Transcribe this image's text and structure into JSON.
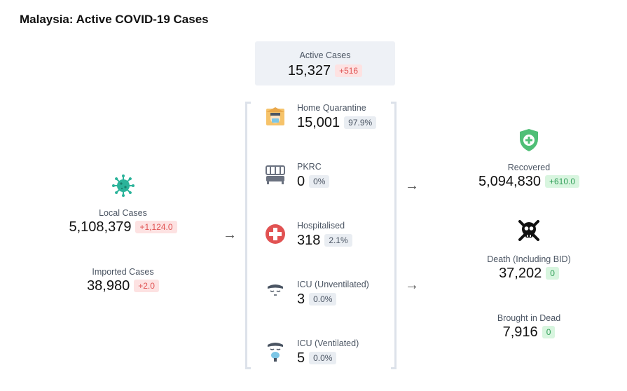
{
  "title": "Malaysia: Active COVID-19 Cases",
  "active": {
    "label": "Active Cases",
    "value": "15,327",
    "change": "+516"
  },
  "left": {
    "local": {
      "label": "Local Cases",
      "value": "5,108,379",
      "change": "+1,124.0"
    },
    "imported": {
      "label": "Imported Cases",
      "value": "38,980",
      "change": "+2.0"
    }
  },
  "middle": [
    {
      "label": "Home Quarantine",
      "value": "15,001",
      "pct": "97.9%",
      "icon": "home-quarantine-icon"
    },
    {
      "label": "PKRC",
      "value": "0",
      "pct": "0%",
      "icon": "bed-icon"
    },
    {
      "label": "Hospitalised",
      "value": "318",
      "pct": "2.1%",
      "icon": "hospital-cross-icon"
    },
    {
      "label": "ICU (Unventilated)",
      "value": "3",
      "pct": "0.0%",
      "icon": "icu-patient-icon"
    },
    {
      "label": "ICU (Ventilated)",
      "value": "5",
      "pct": "0.0%",
      "icon": "ventilator-icon"
    }
  ],
  "right": {
    "recovered": {
      "label": "Recovered",
      "value": "5,094,830",
      "change": "+610.0"
    },
    "death": {
      "label": "Death (Including BID)",
      "value": "37,202",
      "change": "0"
    },
    "bid": {
      "label": "Brought in Dead",
      "value": "7,916",
      "change": "0"
    }
  },
  "arrows": {
    "glyph": "→"
  },
  "colors": {
    "increase": "#e05252",
    "recovered": "#2f9e57",
    "virus": "#2bb39a",
    "shield": "#4fbf76"
  }
}
